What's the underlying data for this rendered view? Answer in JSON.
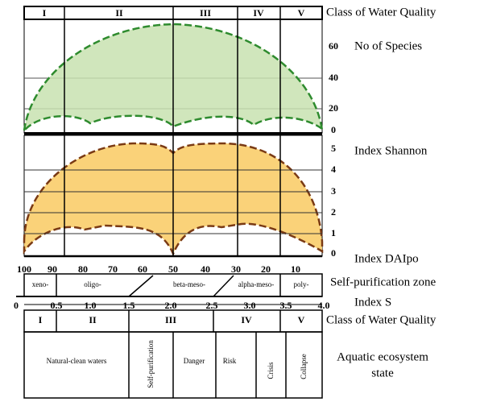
{
  "header_classes": {
    "labels": [
      "I",
      "II",
      "III",
      "IV",
      "V"
    ],
    "caption": "Class of Water Quality"
  },
  "species_panel": {
    "caption": "No of Species",
    "ticks": [
      "60",
      "40",
      "20",
      "0"
    ]
  },
  "shannon_panel": {
    "caption": "Index Shannon",
    "ticks": [
      "5",
      "4",
      "3",
      "2",
      "1",
      "0"
    ]
  },
  "daipo_axis": {
    "caption": "Index DAIpo",
    "ticks": [
      "100",
      "90",
      "80",
      "70",
      "60",
      "50",
      "40",
      "30",
      "20",
      "10"
    ]
  },
  "zones": {
    "caption": "Self-purification zone",
    "labels": [
      "xeno-",
      "oligo-",
      "beta-meso-",
      "alpha-meso-",
      "poly-"
    ]
  },
  "index_s": {
    "caption": "Index S",
    "ticks": [
      "0",
      "0.5",
      "1.0",
      "1.5",
      "2.0",
      "2.5",
      "3.0",
      "3.5",
      "4.0"
    ]
  },
  "classes": {
    "caption": "Class of Water Quality",
    "labels": [
      "I",
      "II",
      "III",
      "IV",
      "V"
    ]
  },
  "states": {
    "caption": [
      "Aquatic ecosystem",
      "state"
    ],
    "labels": [
      "Natural-clean waters",
      "Self-purification",
      "Danger",
      "Risk",
      "Crisis",
      "Collapse"
    ]
  }
}
